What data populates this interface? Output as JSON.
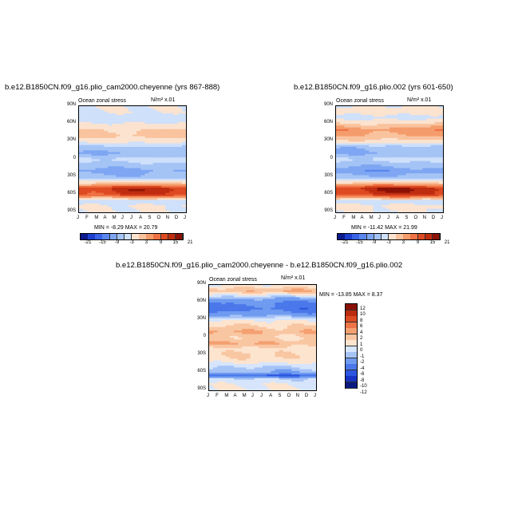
{
  "chart_data": [
    {
      "type": "heatmap",
      "title": "b.e12.B1850CN.f09_g16.plio_cam2000.cheyenne (yrs 867-888)",
      "left_label": "Ocean zonal stress",
      "units_label": "N/m² x.01",
      "x_ticks": [
        "J",
        "F",
        "M",
        "A",
        "M",
        "J",
        "J",
        "A",
        "S",
        "O",
        "N",
        "D",
        "J"
      ],
      "y_ticks": [
        "90N",
        "60N",
        "30N",
        "0",
        "30S",
        "60S",
        "90S"
      ],
      "stats_label": "MIN =  -8.29  MAX =  20.79",
      "min": -8.29,
      "max": 20.79,
      "colorbar_levels": [
        -21,
        -18,
        -15,
        -12,
        -9,
        -6,
        -3,
        0,
        3,
        6,
        9,
        12,
        15,
        18,
        21
      ],
      "colorbar_labels": [
        "-21",
        "-15",
        "-9",
        "-3",
        "3",
        "9",
        "15",
        "21"
      ],
      "lat_profile": [
        [
          -90,
          0
        ],
        [
          -80,
          0.2
        ],
        [
          -70,
          -1
        ],
        [
          -60,
          14
        ],
        [
          -50,
          16
        ],
        [
          -40,
          3
        ],
        [
          -30,
          -5
        ],
        [
          -20,
          -7
        ],
        [
          -10,
          -4
        ],
        [
          0,
          -2
        ],
        [
          10,
          -6
        ],
        [
          20,
          -4
        ],
        [
          30,
          1
        ],
        [
          40,
          4
        ],
        [
          50,
          3
        ],
        [
          60,
          0
        ],
        [
          70,
          -1
        ],
        [
          80,
          0
        ],
        [
          90,
          0
        ]
      ]
    },
    {
      "type": "heatmap",
      "title": "b.e12.B1850CN.f09_g16.plio.002 (yrs 601-650)",
      "left_label": "Ocean zonal stress",
      "units_label": "N/m² x.01",
      "x_ticks": [
        "J",
        "F",
        "M",
        "A",
        "M",
        "J",
        "J",
        "A",
        "S",
        "O",
        "N",
        "D",
        "J"
      ],
      "y_ticks": [
        "90N",
        "60N",
        "30N",
        "0",
        "30S",
        "60S",
        "90S"
      ],
      "stats_label": "MIN = -11.42  MAX =  21.99",
      "min": -11.42,
      "max": 21.99,
      "colorbar_levels": [
        -21,
        -18,
        -15,
        -12,
        -9,
        -6,
        -3,
        0,
        3,
        6,
        9,
        12,
        15,
        18,
        21
      ],
      "colorbar_labels": [
        "-21",
        "-15",
        "-9",
        "-3",
        "3",
        "9",
        "15",
        "21"
      ],
      "lat_profile": [
        [
          -90,
          0
        ],
        [
          -80,
          0.5
        ],
        [
          -70,
          -1
        ],
        [
          -60,
          15
        ],
        [
          -50,
          17
        ],
        [
          -40,
          3
        ],
        [
          -30,
          -5
        ],
        [
          -20,
          -8
        ],
        [
          -10,
          -5
        ],
        [
          0,
          -2
        ],
        [
          10,
          -6
        ],
        [
          20,
          -5
        ],
        [
          30,
          2
        ],
        [
          40,
          6
        ],
        [
          50,
          8
        ],
        [
          60,
          3
        ],
        [
          70,
          -1
        ],
        [
          80,
          1
        ],
        [
          90,
          0
        ]
      ]
    },
    {
      "type": "heatmap",
      "title": "b.e12.B1850CN.f09_g16.plio_cam2000.cheyenne - b.e12.B1850CN.f09_g16.plio.002",
      "left_label": "Ocean zonal stress",
      "units_label": "N/m² x.01",
      "x_ticks": [
        "J",
        "F",
        "M",
        "A",
        "M",
        "J",
        "J",
        "A",
        "S",
        "O",
        "N",
        "D",
        "J"
      ],
      "y_ticks": [
        "90N",
        "60N",
        "30N",
        "0",
        "30S",
        "60S",
        "90S"
      ],
      "stats_label": "MIN = -13.85  MAX =   8.37",
      "min": -13.85,
      "max": 8.37,
      "colorbar_levels": [
        -12,
        -10,
        -8,
        -6,
        -4,
        -2,
        -1,
        0,
        1,
        2,
        4,
        6,
        8,
        10,
        12
      ],
      "colorbar_labels": [
        "12",
        "10",
        "8",
        "6",
        "4",
        "2",
        "1",
        "0",
        "-1",
        "-2",
        "-4",
        "-6",
        "-8",
        "-10",
        "-12"
      ],
      "lat_profile": [
        [
          -90,
          0
        ],
        [
          -80,
          0
        ],
        [
          -70,
          -1
        ],
        [
          -65,
          -6
        ],
        [
          -60,
          -2
        ],
        [
          -50,
          -1
        ],
        [
          -40,
          0.5
        ],
        [
          -30,
          1
        ],
        [
          -20,
          0.5
        ],
        [
          -10,
          2
        ],
        [
          0,
          1
        ],
        [
          10,
          2
        ],
        [
          20,
          1
        ],
        [
          30,
          0
        ],
        [
          40,
          -3
        ],
        [
          50,
          -5
        ],
        [
          60,
          -4
        ],
        [
          70,
          -1
        ],
        [
          80,
          2
        ],
        [
          90,
          0
        ]
      ]
    }
  ]
}
